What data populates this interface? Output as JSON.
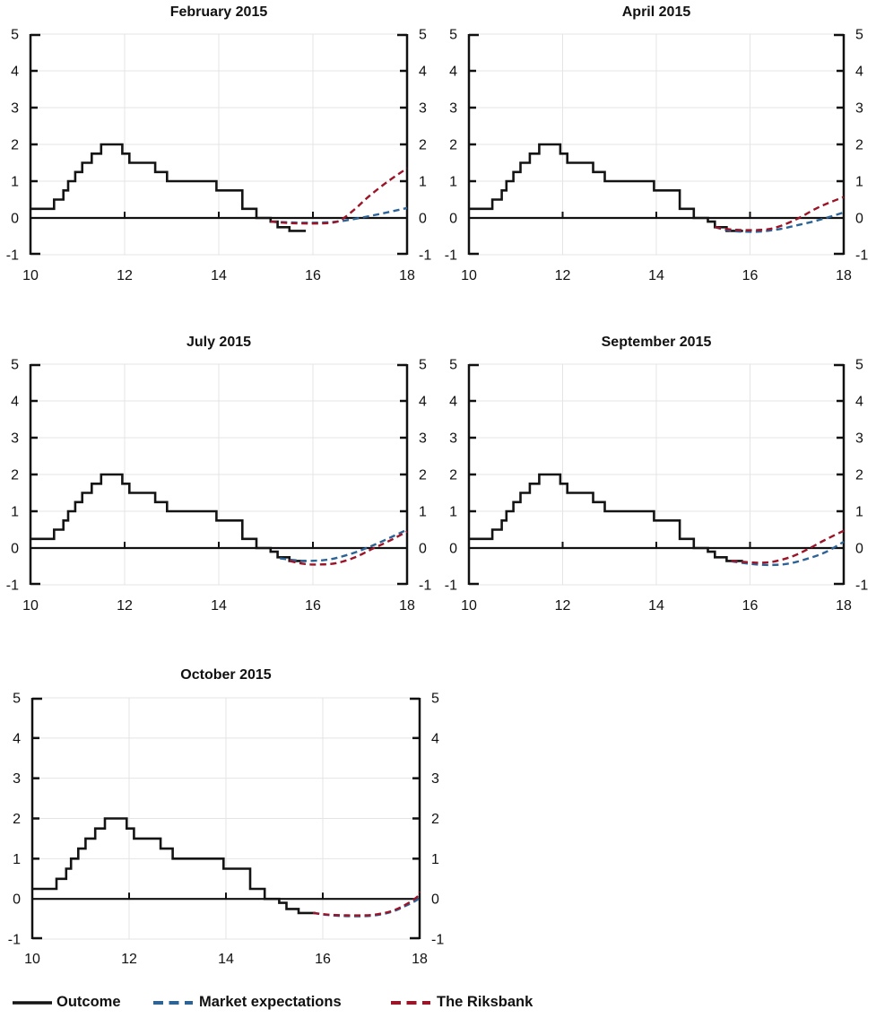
{
  "chart_data": [
    {
      "type": "line",
      "title": "February 2015",
      "xlabel": "",
      "ylabel": "",
      "xlim": [
        10,
        18
      ],
      "ylim": [
        -1,
        5
      ],
      "xticks": [
        10,
        12,
        14,
        16,
        18
      ],
      "yticks": [
        -1,
        0,
        1,
        2,
        3,
        4,
        5
      ],
      "grid": true,
      "legend_position": "bottom-shared",
      "series": [
        {
          "name": "Market expectations",
          "color": "#2E6396",
          "style": "dashed",
          "points": [
            [
              15.1,
              -0.1
            ],
            [
              15.5,
              -0.12
            ],
            [
              16.0,
              -0.13
            ],
            [
              16.5,
              -0.1
            ],
            [
              17.0,
              0.0
            ],
            [
              17.5,
              0.13
            ],
            [
              18.0,
              0.27
            ]
          ]
        },
        {
          "name": "The Riksbank",
          "color": "#9B1428",
          "style": "dashed",
          "points": [
            [
              15.1,
              -0.1
            ],
            [
              15.5,
              -0.14
            ],
            [
              16.0,
              -0.15
            ],
            [
              16.4,
              -0.13
            ],
            [
              16.6,
              -0.05
            ],
            [
              16.9,
              0.25
            ],
            [
              17.2,
              0.6
            ],
            [
              17.6,
              1.0
            ],
            [
              18.0,
              1.35
            ]
          ]
        }
      ]
    },
    {
      "type": "line",
      "title": "April 2015",
      "xlabel": "",
      "ylabel": "",
      "xlim": [
        10,
        18
      ],
      "ylim": [
        -1,
        5
      ],
      "xticks": [
        10,
        12,
        14,
        16,
        18
      ],
      "yticks": [
        -1,
        0,
        1,
        2,
        3,
        4,
        5
      ],
      "grid": true,
      "series": [
        {
          "name": "Market expectations",
          "color": "#2E6396",
          "style": "dashed",
          "points": [
            [
              15.25,
              -0.25
            ],
            [
              15.5,
              -0.33
            ],
            [
              15.8,
              -0.37
            ],
            [
              16.2,
              -0.37
            ],
            [
              16.6,
              -0.31
            ],
            [
              17.0,
              -0.2
            ],
            [
              17.4,
              -0.08
            ],
            [
              17.7,
              0.03
            ],
            [
              18.0,
              0.15
            ]
          ]
        },
        {
          "name": "The Riksbank",
          "color": "#9B1428",
          "style": "dashed",
          "points": [
            [
              15.25,
              -0.25
            ],
            [
              15.5,
              -0.3
            ],
            [
              15.8,
              -0.33
            ],
            [
              16.3,
              -0.32
            ],
            [
              16.6,
              -0.24
            ],
            [
              17.0,
              -0.03
            ],
            [
              17.4,
              0.25
            ],
            [
              17.7,
              0.42
            ],
            [
              18.0,
              0.57
            ]
          ]
        }
      ]
    },
    {
      "type": "line",
      "title": "July 2015",
      "xlabel": "",
      "ylabel": "",
      "xlim": [
        10,
        18
      ],
      "ylim": [
        -1,
        5
      ],
      "xticks": [
        10,
        12,
        14,
        16,
        18
      ],
      "yticks": [
        -1,
        0,
        1,
        2,
        3,
        4,
        5
      ],
      "grid": true,
      "series": [
        {
          "name": "Market expectations",
          "color": "#2E6396",
          "style": "dashed",
          "points": [
            [
              15.3,
              -0.28
            ],
            [
              15.6,
              -0.33
            ],
            [
              15.9,
              -0.35
            ],
            [
              16.3,
              -0.32
            ],
            [
              16.7,
              -0.2
            ],
            [
              17.1,
              -0.02
            ],
            [
              17.5,
              0.2
            ],
            [
              18.0,
              0.5
            ]
          ]
        },
        {
          "name": "The Riksbank",
          "color": "#9B1428",
          "style": "dashed",
          "points": [
            [
              15.5,
              -0.35
            ],
            [
              15.8,
              -0.43
            ],
            [
              16.1,
              -0.45
            ],
            [
              16.5,
              -0.41
            ],
            [
              16.9,
              -0.25
            ],
            [
              17.25,
              -0.03
            ],
            [
              17.6,
              0.18
            ],
            [
              18.0,
              0.45
            ]
          ]
        }
      ]
    },
    {
      "type": "line",
      "title": "September 2015",
      "xlabel": "",
      "ylabel": "",
      "xlim": [
        10,
        18
      ],
      "ylim": [
        -1,
        5
      ],
      "xticks": [
        10,
        12,
        14,
        16,
        18
      ],
      "yticks": [
        -1,
        0,
        1,
        2,
        3,
        4,
        5
      ],
      "grid": true,
      "series": [
        {
          "name": "Market expectations",
          "color": "#2E6396",
          "style": "dashed",
          "points": [
            [
              15.6,
              -0.36
            ],
            [
              16.0,
              -0.43
            ],
            [
              16.4,
              -0.46
            ],
            [
              16.8,
              -0.43
            ],
            [
              17.2,
              -0.3
            ],
            [
              17.6,
              -0.12
            ],
            [
              18.0,
              0.17
            ]
          ]
        },
        {
          "name": "The Riksbank",
          "color": "#9B1428",
          "style": "dashed",
          "points": [
            [
              15.6,
              -0.35
            ],
            [
              15.9,
              -0.38
            ],
            [
              16.2,
              -0.4
            ],
            [
              16.5,
              -0.37
            ],
            [
              16.9,
              -0.23
            ],
            [
              17.25,
              -0.02
            ],
            [
              17.6,
              0.22
            ],
            [
              18.0,
              0.47
            ]
          ]
        }
      ]
    },
    {
      "type": "line",
      "title": "October 2015",
      "xlabel": "",
      "ylabel": "",
      "xlim": [
        10,
        18
      ],
      "ylim": [
        -1,
        5
      ],
      "xticks": [
        10,
        12,
        14,
        16,
        18
      ],
      "yticks": [
        -1,
        0,
        1,
        2,
        3,
        4,
        5
      ],
      "grid": true,
      "series": [
        {
          "name": "Market expectations",
          "color": "#2E6396",
          "style": "dashed",
          "points": [
            [
              15.8,
              -0.35
            ],
            [
              16.1,
              -0.4
            ],
            [
              16.5,
              -0.43
            ],
            [
              17.0,
              -0.42
            ],
            [
              17.4,
              -0.33
            ],
            [
              17.7,
              -0.18
            ],
            [
              17.95,
              -0.02
            ],
            [
              18.0,
              0.08
            ]
          ]
        },
        {
          "name": "The Riksbank",
          "color": "#9B1428",
          "style": "dashed",
          "points": [
            [
              15.8,
              -0.35
            ],
            [
              16.1,
              -0.39
            ],
            [
              16.5,
              -0.41
            ],
            [
              17.0,
              -0.4
            ],
            [
              17.4,
              -0.31
            ],
            [
              17.7,
              -0.15
            ],
            [
              17.95,
              0.05
            ],
            [
              18.0,
              0.18
            ]
          ]
        }
      ]
    }
  ],
  "outcome_common": {
    "name": "Outcome",
    "color": "#141414",
    "style": "step",
    "points": [
      [
        10.0,
        0.25
      ],
      [
        10.5,
        0.5
      ],
      [
        10.7,
        0.75
      ],
      [
        10.8,
        1.0
      ],
      [
        10.95,
        1.25
      ],
      [
        11.1,
        1.5
      ],
      [
        11.3,
        1.75
      ],
      [
        11.5,
        2.0
      ],
      [
        11.95,
        1.75
      ],
      [
        12.1,
        1.5
      ],
      [
        12.65,
        1.25
      ],
      [
        12.9,
        1.0
      ],
      [
        13.95,
        0.75
      ],
      [
        14.5,
        0.25
      ],
      [
        14.8,
        0.0
      ],
      [
        15.1,
        -0.1
      ],
      [
        15.25,
        -0.25
      ],
      [
        15.5,
        -0.35
      ],
      [
        15.85,
        -0.35
      ]
    ]
  },
  "axes_labels": {
    "x_tick_labels": [
      "10",
      "12",
      "14",
      "16",
      "18"
    ],
    "y_tick_labels": [
      "-1",
      "0",
      "1",
      "2",
      "3",
      "4",
      "5"
    ]
  },
  "legend": {
    "items": [
      {
        "label": "Outcome",
        "color": "#141414",
        "style": "solid"
      },
      {
        "label": "Market expectations",
        "color": "#2E6396",
        "style": "dashed"
      },
      {
        "label": "The Riksbank",
        "color": "#9B1428",
        "style": "dashed"
      }
    ]
  },
  "colors": {
    "outcome": "#141414",
    "market_expectations": "#2E6396",
    "riksbank": "#9B1428",
    "gridline": "#E4E4E4",
    "axis": "#111111",
    "background": "#FFFFFF"
  }
}
